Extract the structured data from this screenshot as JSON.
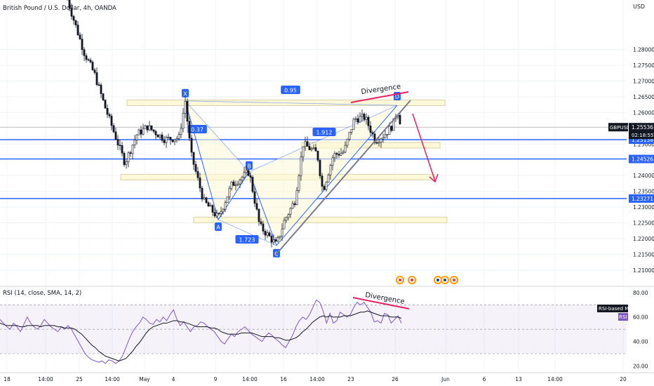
{
  "header": {
    "title": "British Pound / U.S. Dollar, 4h, OANDA",
    "currency": "USD"
  },
  "chart_data": {
    "type": "candlestick",
    "price_axis": {
      "ticks": [
        "1.28000",
        "1.27500",
        "1.27000",
        "1.26500",
        "1.26000",
        "1.25000",
        "1.24000",
        "1.23500",
        "1.23000",
        "1.22500",
        "1.22000",
        "1.21500",
        "1.21000"
      ],
      "tick_values": [
        1.28,
        1.275,
        1.27,
        1.265,
        1.26,
        1.25,
        1.24,
        1.235,
        1.23,
        1.225,
        1.22,
        1.215,
        1.21
      ],
      "range": [
        1.2055,
        1.2935
      ],
      "current": {
        "symbol": "GBPUSD",
        "price": "1.25536",
        "countdown": "02:18:55",
        "value": 1.25536
      },
      "levels": [
        {
          "label": "1.25138",
          "value": 1.25138
        },
        {
          "label": "1.24526",
          "value": 1.24526
        },
        {
          "label": "1.23271",
          "value": 1.23271
        }
      ]
    },
    "time_axis": [
      "18",
      "14:00",
      "25",
      "14:00",
      "May",
      "4",
      "9",
      "14:00",
      "16",
      "14:00",
      "23",
      "26",
      "Jun",
      "6",
      "13",
      "14:00",
      "20"
    ],
    "zones": [
      {
        "top": 1.264,
        "bottom": 1.2628,
        "x_start": 181,
        "x_end": 634
      },
      {
        "top": 1.2505,
        "bottom": 1.2496,
        "x_start": 430,
        "x_end": 627
      },
      {
        "top": 1.2404,
        "bottom": 1.2394,
        "x_start": 172,
        "x_end": 619
      },
      {
        "top": 1.2268,
        "bottom": 1.2262,
        "x_start": 276,
        "x_end": 637
      }
    ],
    "pattern": {
      "points": [
        {
          "label": "X",
          "price": 1.2637
        },
        {
          "label": "A",
          "price": 1.226
        },
        {
          "label": "B",
          "price": 1.2412
        },
        {
          "label": "C",
          "price": 1.2178
        },
        {
          "label": "D",
          "price": 1.2623
        }
      ],
      "ratios": [
        "0.95",
        "0.37",
        "1.912",
        "1.723"
      ]
    },
    "annotations": {
      "divergence_price": "Divergence",
      "divergence_rsi": "Divergence"
    },
    "rsi": {
      "title": "RSI (14, close, SMA, 14, 2)",
      "ticks": [
        "80.00",
        "60.00",
        "40.00",
        "20.00"
      ],
      "tick_values": [
        80,
        60,
        40,
        20
      ],
      "range": [
        15,
        84
      ],
      "ma_label": "RSI-based MA",
      "rsi_label": "RSI",
      "bands": [
        70,
        50,
        30
      ],
      "rsi_values": [
        58,
        55,
        52,
        50,
        55,
        52,
        48,
        54,
        60,
        55,
        52,
        50,
        53,
        58,
        55,
        52,
        50,
        48,
        52,
        50,
        53,
        50,
        45,
        40,
        35,
        30,
        27,
        25,
        24,
        23,
        24,
        22,
        25,
        24,
        22,
        24,
        28,
        35,
        42,
        48,
        52,
        55,
        60,
        58,
        55,
        54,
        58,
        56,
        60,
        57,
        62,
        66,
        58,
        53,
        56,
        52,
        48,
        52,
        53,
        56,
        55,
        52,
        50,
        48,
        44,
        40,
        38,
        42,
        46,
        44,
        48,
        50,
        52,
        49,
        46,
        44,
        42,
        40,
        44,
        47,
        45,
        42,
        40,
        37,
        35,
        40,
        45,
        52,
        57,
        60,
        58,
        62,
        68,
        74,
        72,
        65,
        55,
        63,
        55,
        57,
        64,
        62,
        60,
        62,
        68,
        72,
        70,
        72,
        68,
        64,
        56,
        57,
        55,
        63,
        62,
        55,
        58,
        61,
        55
      ],
      "ma_values": [
        55,
        54,
        53,
        53,
        53,
        53,
        52,
        52,
        53,
        53,
        53,
        53,
        52,
        53,
        53,
        53,
        53,
        52,
        52,
        51,
        51,
        51,
        50,
        48,
        46,
        43,
        40,
        37,
        35,
        32,
        30,
        28,
        27,
        26,
        25,
        24,
        25,
        26,
        29,
        32,
        36,
        39,
        43,
        47,
        50,
        52,
        53,
        54,
        55,
        55,
        56,
        57,
        57,
        56,
        56,
        55,
        54,
        53,
        52,
        52,
        52,
        52,
        51,
        51,
        50,
        48,
        47,
        46,
        46,
        46,
        46,
        47,
        47,
        47,
        47,
        46,
        45,
        44,
        44,
        44,
        44,
        43,
        43,
        42,
        41,
        41,
        42,
        43,
        45,
        48,
        50,
        53,
        56,
        58,
        60,
        61,
        60,
        61,
        60,
        60,
        60,
        61,
        61,
        61,
        62,
        63,
        64,
        64,
        65,
        64,
        63,
        62,
        61,
        61,
        61,
        60,
        60,
        60,
        59
      ]
    }
  },
  "colors": {
    "level_line": "#2962ff",
    "pattern": "#2962ff",
    "zone_fill": "#fdf9d8",
    "zone_border": "#d9d1a8",
    "divergence": "#e91e63",
    "rsi_line": "#7e57c2",
    "arrow": "#e91e63"
  }
}
